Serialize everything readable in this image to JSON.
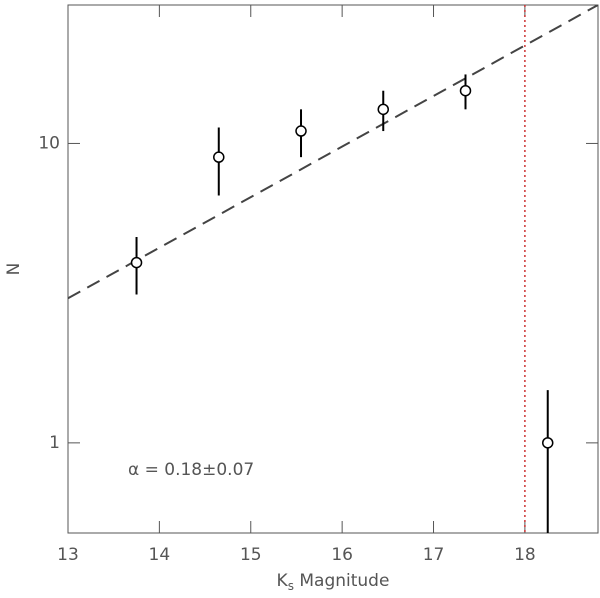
{
  "chart_data": {
    "type": "scatter",
    "xlabel": [
      "K",
      "s",
      " Magnitude"
    ],
    "ylabel": "N",
    "annotation": "α = 0.18±0.07",
    "x": [
      13.75,
      14.65,
      15.55,
      16.45,
      17.35,
      18.25
    ],
    "series": [
      {
        "values": [
          4,
          9,
          11,
          13,
          15,
          1
        ],
        "errors": [
          0.87,
          2.3,
          2,
          2,
          2,
          0.5
        ],
        "color": "#000000"
      }
    ],
    "fit": {
      "x": [
        13,
        18.8
      ],
      "values": [
        3.04,
        29
      ],
      "color": "#444444"
    },
    "vline": {
      "x": 18,
      "color": "#cc3333"
    },
    "xlim": [
      13,
      18.8
    ],
    "ylim": [
      0.5,
      29
    ],
    "xticks": [
      13,
      14,
      15,
      16,
      17,
      18
    ],
    "yticks": [
      1,
      10
    ],
    "log_y": true
  }
}
